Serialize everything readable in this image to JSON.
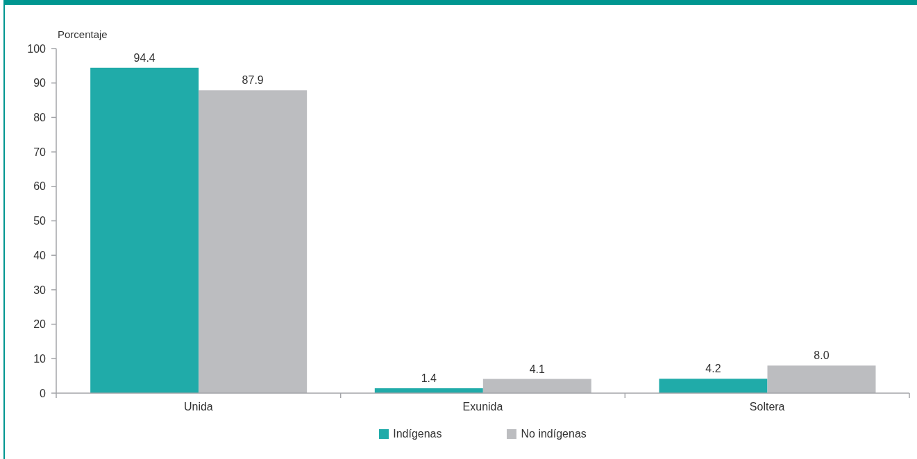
{
  "chart_data": {
    "type": "bar",
    "ylabel": "Porcentaje",
    "categories": [
      "Unida",
      "Exunida",
      "Soltera"
    ],
    "series": [
      {
        "name": "Indígenas",
        "color": "#20aba9",
        "values": [
          94.4,
          1.4,
          4.2
        ],
        "value_labels": [
          "94.4",
          "1.4",
          "4.2"
        ]
      },
      {
        "name": "No indígenas",
        "color": "#bcbdc0",
        "values": [
          87.9,
          4.1,
          8.0
        ],
        "value_labels": [
          "87.9",
          "4.1",
          "8.0"
        ]
      }
    ],
    "ylim": [
      0,
      100
    ],
    "yticks": [
      0,
      10,
      20,
      30,
      40,
      50,
      60,
      70,
      80,
      90,
      100
    ],
    "legend": "bottom"
  }
}
